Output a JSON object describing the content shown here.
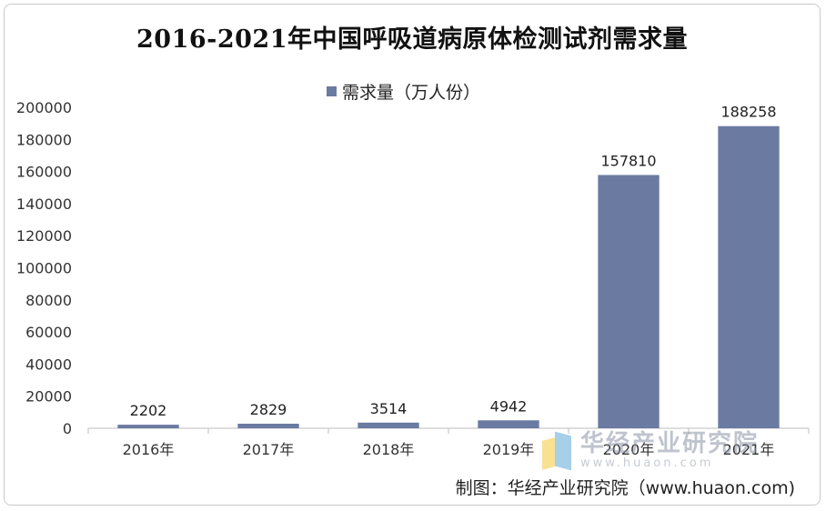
{
  "chart_data": {
    "type": "bar",
    "title": "2016-2021年中国呼吸道病原体检测试剂需求量",
    "xlabel": "",
    "ylabel": "",
    "categories": [
      "2016年",
      "2017年",
      "2018年",
      "2019年",
      "2020年",
      "2021年"
    ],
    "series": [
      {
        "name": "需求量（万人份）",
        "values": [
          2202,
          2829,
          3514,
          4942,
          157810,
          188258
        ],
        "color": "#6a7aa1"
      }
    ],
    "data_labels": [
      "2202",
      "2829",
      "3514",
      "4942",
      "157810",
      "188258"
    ],
    "ylim": [
      0,
      200000
    ],
    "yticks": [
      0,
      20000,
      40000,
      60000,
      80000,
      100000,
      120000,
      140000,
      160000,
      180000,
      200000
    ],
    "ytick_labels": [
      "0",
      "20000",
      "40000",
      "60000",
      "80000",
      "100000",
      "120000",
      "140000",
      "160000",
      "180000",
      "200000"
    ],
    "grid": false,
    "legend_position": "top-center"
  },
  "source": "制图：华经产业研究院（www.huaon.com)",
  "watermark": {
    "name": "华经产业研究院",
    "url": "www.huaon.com"
  }
}
